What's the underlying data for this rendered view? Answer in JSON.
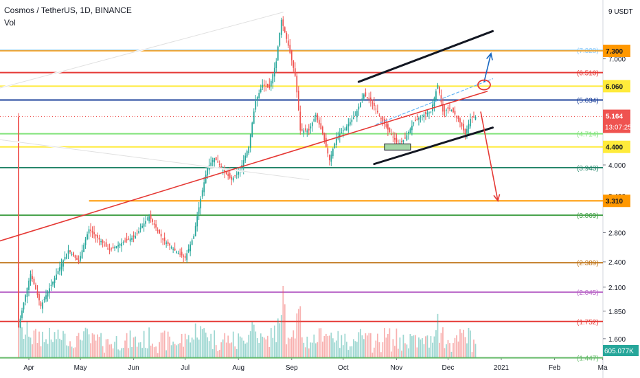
{
  "header": {
    "title": "Cosmos / TetherUS, 1D, BINANCE",
    "volume_label": "Vol"
  },
  "axis": {
    "unit_label": "9 USDT",
    "price_ticks": [
      "7.000",
      "6.000",
      "5.000",
      "4.000",
      "3.400",
      "2.800",
      "2.400",
      "2.100",
      "1.850",
      "1.600"
    ],
    "clock": "13:07:25",
    "volume_value": "605.077K"
  },
  "time_labels": [
    "Apr",
    "May",
    "Jun",
    "Jul",
    "Aug",
    "Sep",
    "Oct",
    "Nov",
    "Dec",
    "2021",
    "Feb",
    "Ma"
  ],
  "levels": [
    {
      "price": 7.328,
      "label": "(7.328)",
      "color": "#90caf9",
      "badge": false,
      "width": 1.5
    },
    {
      "price": 7.3,
      "label": "7.300",
      "color": "#ff9800",
      "badge": true,
      "width": 1.5
    },
    {
      "price": 6.51,
      "label": "(6.510)",
      "color": "#e53935",
      "badge": false,
      "width": 2
    },
    {
      "price": 6.06,
      "label": "6.060",
      "color": "#ffeb3b",
      "badge": true,
      "width": 2
    },
    {
      "price": 5.634,
      "label": "(5.634)",
      "color": "#1a3f9a",
      "badge": false,
      "width": 2
    },
    {
      "price": 4.714,
      "label": "(4.714)",
      "color": "#81e37a",
      "badge": false,
      "width": 2
    },
    {
      "price": 4.4,
      "label": "4.400",
      "color": "#ffeb3b",
      "badge": true,
      "width": 2
    },
    {
      "price": 3.943,
      "label": "(3.943)",
      "color": "#26866b",
      "badge": false,
      "width": 2
    },
    {
      "price": 3.31,
      "label": "3.310",
      "color": "#ff9800",
      "badge": true,
      "width": 2
    },
    {
      "price": 3.069,
      "label": "(3.069)",
      "color": "#43a047",
      "badge": false,
      "width": 2
    },
    {
      "price": 2.389,
      "label": "(2.389)",
      "color": "#c0751a",
      "badge": false,
      "width": 2
    },
    {
      "price": 2.045,
      "label": "(2.045)",
      "color": "#ba68c8",
      "badge": false,
      "width": 2
    },
    {
      "price": 1.752,
      "label": "(1.752)",
      "color": "#e53935",
      "badge": false,
      "width": 2
    },
    {
      "price": 1.447,
      "label": "(1.447)",
      "color": "#66bb6a",
      "badge": false,
      "width": 2
    }
  ],
  "last_price": {
    "price": 5.164,
    "label": "5.164",
    "color": "#ef5350"
  },
  "colors": {
    "up": "#26a69a",
    "down": "#ef5350",
    "accent": "#1e88e5"
  },
  "chart_data": {
    "type": "candlestick",
    "title": "Cosmos / TetherUS, 1D, BINANCE",
    "x_range": [
      "Mar 24",
      "Mar 4 2021"
    ],
    "y_scale": "log",
    "y_range": [
      1.35,
      9.0
    ],
    "series": [
      {
        "name": "price path",
        "points": [
          [
            "Mar 26",
            1.7
          ],
          [
            "Apr 2",
            2.25
          ],
          [
            "Apr 8",
            1.9
          ],
          [
            "Apr 16",
            2.2
          ],
          [
            "Apr 24",
            2.55
          ],
          [
            "Apr 30",
            2.4
          ],
          [
            "May 6",
            2.85
          ],
          [
            "May 12",
            2.7
          ],
          [
            "May 18",
            2.55
          ],
          [
            "May 25",
            2.65
          ],
          [
            "Jun 2",
            2.75
          ],
          [
            "Jun 10",
            3.05
          ],
          [
            "Jun 18",
            2.7
          ],
          [
            "Jun 25",
            2.55
          ],
          [
            "Jul 1",
            2.45
          ],
          [
            "Jul 6",
            2.75
          ],
          [
            "Jul 11",
            3.5
          ],
          [
            "Jul 14",
            3.95
          ],
          [
            "Jul 18",
            4.15
          ],
          [
            "Jul 24",
            3.85
          ],
          [
            "Jul 28",
            3.7
          ],
          [
            "Aug 2",
            3.9
          ],
          [
            "Aug 7",
            4.4
          ],
          [
            "Aug 11",
            5.6
          ],
          [
            "Aug 15",
            6.1
          ],
          [
            "Aug 19",
            6.0
          ],
          [
            "Aug 23",
            6.9
          ],
          [
            "Aug 26",
            8.6
          ],
          [
            "Aug 30",
            7.5
          ],
          [
            "Sep 3",
            6.4
          ],
          [
            "Sep 6",
            4.8
          ],
          [
            "Sep 11",
            4.8
          ],
          [
            "Sep 15",
            5.2
          ],
          [
            "Sep 19",
            4.7
          ],
          [
            "Sep 23",
            4.1
          ],
          [
            "Sep 27",
            4.6
          ],
          [
            "Oct 3",
            4.9
          ],
          [
            "Oct 8",
            5.2
          ],
          [
            "Oct 13",
            5.8
          ],
          [
            "Oct 18",
            5.55
          ],
          [
            "Oct 23",
            5.1
          ],
          [
            "Oct 28",
            4.75
          ],
          [
            "Nov 2",
            4.45
          ],
          [
            "Nov 6",
            4.6
          ],
          [
            "Nov 11",
            5.0
          ],
          [
            "Nov 16",
            5.2
          ],
          [
            "Nov 21",
            5.3
          ],
          [
            "Nov 25",
            6.1
          ],
          [
            "Nov 28",
            5.3
          ],
          [
            "Dec 2",
            5.4
          ],
          [
            "Dec 7",
            5.1
          ],
          [
            "Dec 11",
            4.7
          ],
          [
            "Dec 14",
            5.1
          ],
          [
            "Dec 17",
            5.16
          ]
        ]
      }
    ],
    "annotations": {
      "triangle_upper": [
        [
          "Aug 27",
          8.95
        ],
        [
          "Jan 16",
          5.2
        ]
      ],
      "triangle_lower": [
        [
          "Sep 11",
          3.7
        ],
        [
          "Jan 16",
          4.9
        ]
      ],
      "channel_upper": [
        [
          "Oct 10",
          6.2
        ],
        [
          "Dec 27",
          8.1
        ]
      ],
      "channel_lower": [
        [
          "Oct 19",
          4.02
        ],
        [
          "Dec 27",
          4.87
        ]
      ],
      "dashed_trend": [
        [
          "Oct 20",
          4.95
        ],
        [
          "Dec 27",
          6.3
        ]
      ],
      "arrow_up": [
        [
          "Dec 22",
          6.2
        ],
        [
          "Dec 26",
          7.2
        ]
      ],
      "arrow_down_short": [
        [
          "Dec 20",
          5.3
        ],
        [
          "Dec 30",
          3.31
        ]
      ],
      "arrow_down_long": [
        [
          "Dec 24",
          5.9
        ],
        [
          "Feb 3",
          2.39
        ]
      ],
      "circle_target": [
        "Dec 22",
        6.1
      ]
    }
  }
}
